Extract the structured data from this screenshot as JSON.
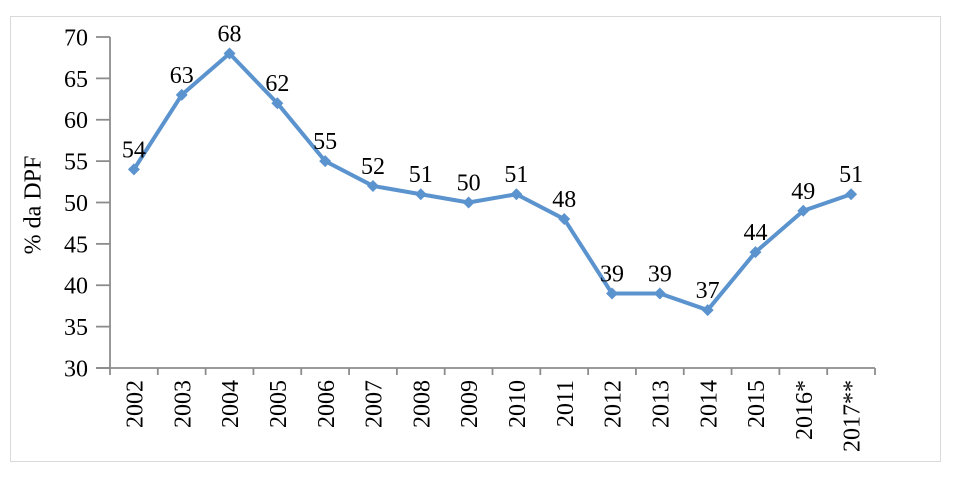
{
  "chart_data": {
    "type": "line",
    "title": "",
    "xlabel": "",
    "ylabel": "% da DPF",
    "categories": [
      "2002",
      "2003",
      "2004",
      "2005",
      "2006",
      "2007",
      "2008",
      "2009",
      "2010",
      "2011",
      "2012",
      "2013",
      "2014",
      "2015",
      "2016*",
      "2017**"
    ],
    "values": [
      54,
      63,
      68,
      62,
      55,
      52,
      51,
      50,
      51,
      48,
      39,
      39,
      37,
      44,
      49,
      51
    ],
    "data_labels": [
      54,
      63,
      68,
      62,
      55,
      52,
      51,
      50,
      51,
      48,
      39,
      39,
      37,
      44,
      49,
      51
    ],
    "ylim": [
      30,
      70
    ],
    "ytick_step": 5,
    "ytick_labels": [
      "30",
      "35",
      "40",
      "45",
      "50",
      "55",
      "60",
      "65",
      "70"
    ],
    "grid": false,
    "legend_position": "none",
    "marker": "diamond",
    "colors": {
      "series": "#5B93CE",
      "axis": "#8C8C8C",
      "text": "#000000",
      "frame_border": "#D9D9D9",
      "background": "#FFFFFF"
    }
  }
}
